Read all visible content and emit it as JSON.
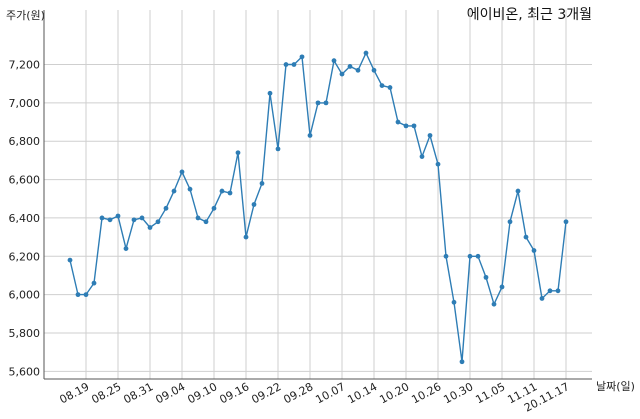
{
  "chart_data": {
    "type": "line",
    "title": "에이비온, 최근 3개월",
    "ylabel": "주가(원)",
    "xlabel": "날짜(일)",
    "ylim": [
      5560,
      7380
    ],
    "yticks": [
      5600,
      5800,
      6000,
      6200,
      6400,
      6600,
      6800,
      7000,
      7200
    ],
    "ytick_labels": [
      "5,600",
      "5,800",
      "6,000",
      "6,200",
      "6,400",
      "6,600",
      "6,800",
      "7,000",
      "7,200"
    ],
    "xtick_labels": [
      "08.19",
      "08.25",
      "08.31",
      "09.04",
      "09.10",
      "09.16",
      "09.22",
      "09.28",
      "10.07",
      "10.14",
      "10.20",
      "10.26",
      "10.30",
      "11.05",
      "11.11",
      "20.11.17"
    ],
    "xtick_positions": [
      2,
      6,
      10,
      14,
      18,
      22,
      26,
      30,
      34,
      38,
      42,
      46,
      50,
      54,
      58,
      62
    ],
    "grid": true,
    "series": [
      {
        "color": "#2e7db5",
        "values": [
          6180,
          6000,
          6000,
          6060,
          6400,
          6390,
          6410,
          6240,
          6390,
          6400,
          6350,
          6380,
          6450,
          6540,
          6640,
          6550,
          6400,
          6380,
          6450,
          6540,
          6530,
          6740,
          6300,
          6470,
          6580,
          7050,
          6760,
          7200,
          7200,
          7240,
          6830,
          7000,
          7000,
          7220,
          7150,
          7190,
          7170,
          7260,
          7170,
          7090,
          7080,
          6900,
          6880,
          6880,
          6720,
          6830,
          6680,
          6200,
          5960,
          5650,
          6200,
          6200,
          6090,
          5950,
          6040,
          6380,
          6540,
          6300,
          6230,
          5980,
          6020,
          6020,
          6380
        ]
      }
    ]
  }
}
